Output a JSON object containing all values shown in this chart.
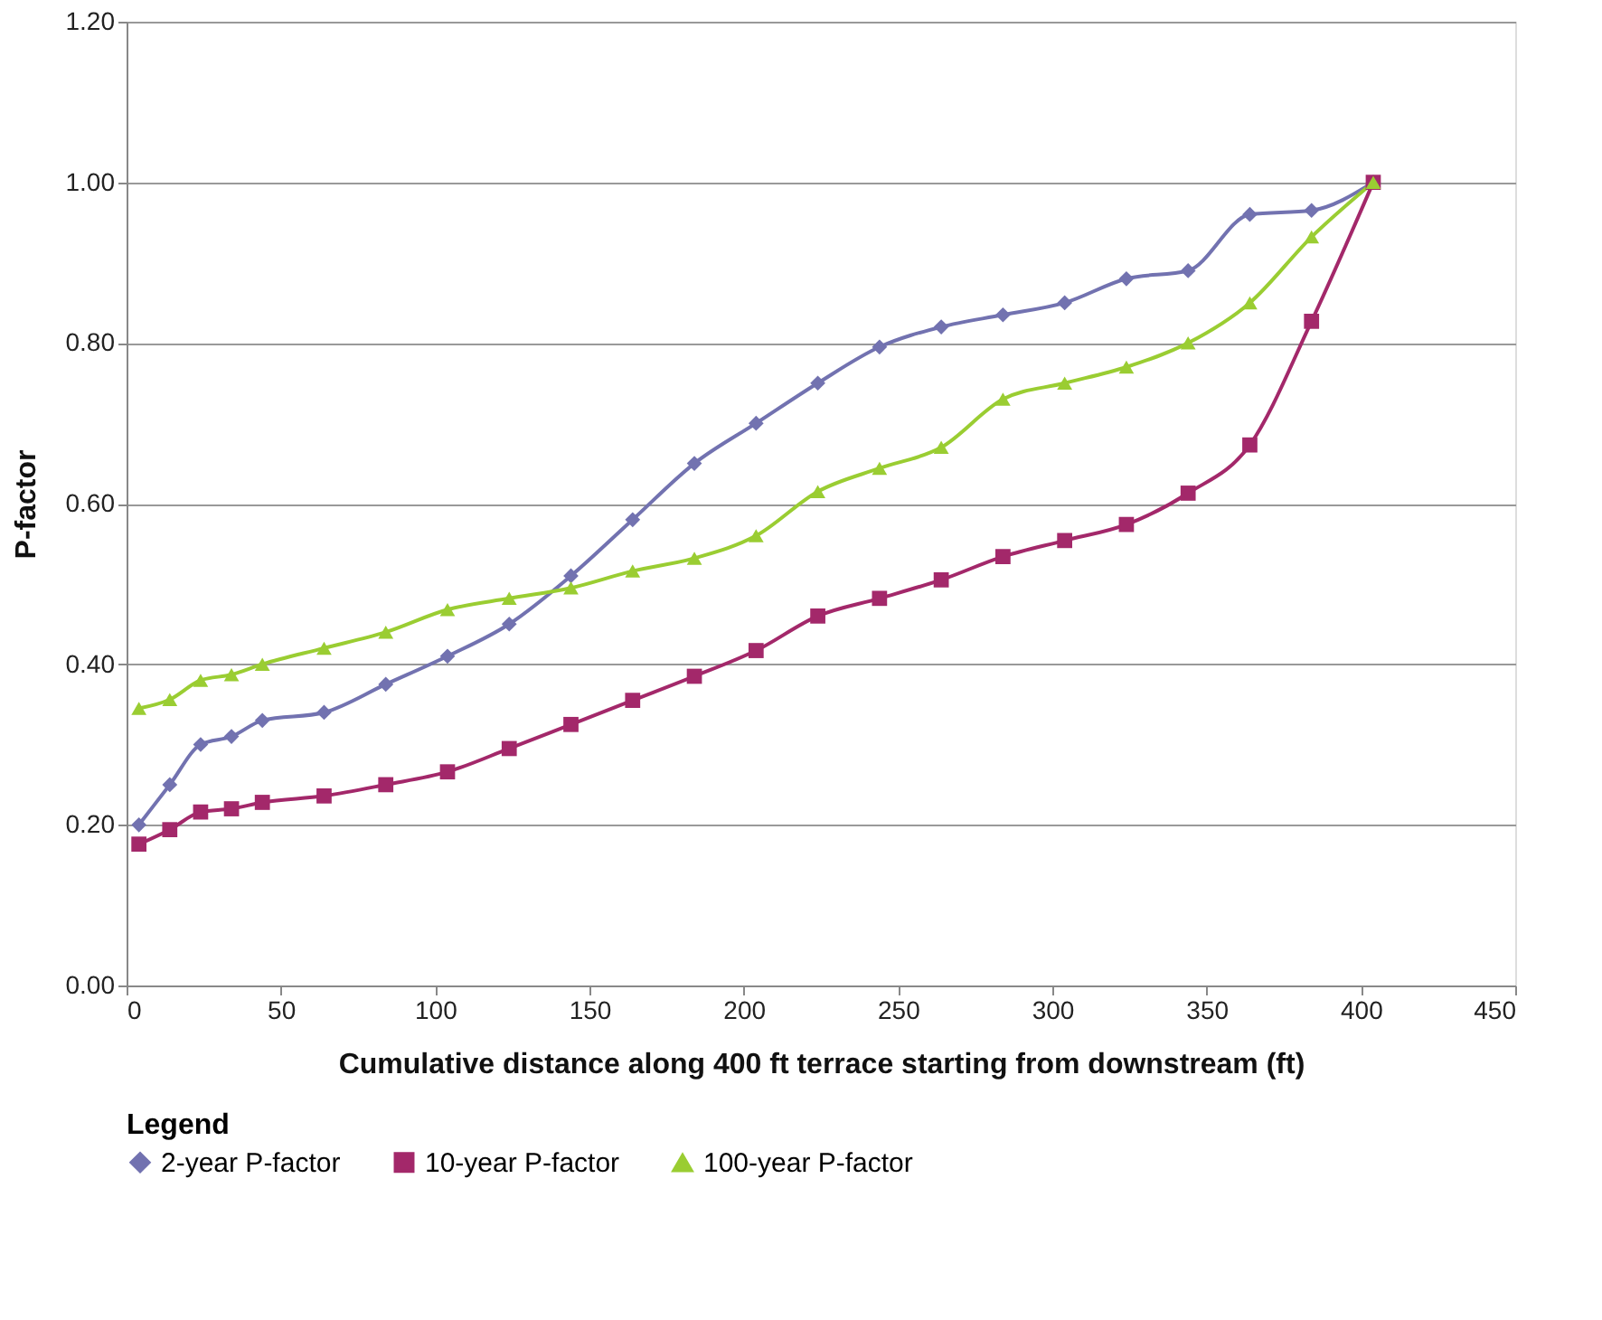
{
  "chart_data": {
    "type": "line",
    "xlabel": "Cumulative distance along 400 ft terrace starting from downstream (ft)",
    "ylabel": "P-factor",
    "legend_title": "Legend",
    "x": [
      4,
      14,
      24,
      34,
      44,
      64,
      84,
      104,
      124,
      144,
      164,
      184,
      204,
      224,
      244,
      264,
      284,
      304,
      324,
      344,
      364,
      384,
      404
    ],
    "series": [
      {
        "name": "2-year P-factor",
        "color": "#7272b0",
        "marker": "diamond",
        "values": [
          0.2,
          0.25,
          0.3,
          0.31,
          0.33,
          0.34,
          0.375,
          0.41,
          0.45,
          0.51,
          0.58,
          0.65,
          0.7,
          0.75,
          0.795,
          0.82,
          0.835,
          0.85,
          0.88,
          0.89,
          0.96,
          0.965,
          1.0
        ]
      },
      {
        "name": "10-year P-factor",
        "color": "#a3286a",
        "marker": "square",
        "values": [
          0.176,
          0.194,
          0.216,
          0.22,
          0.228,
          0.236,
          0.25,
          0.266,
          0.295,
          0.325,
          0.355,
          0.385,
          0.417,
          0.46,
          0.482,
          0.505,
          0.534,
          0.554,
          0.574,
          0.613,
          0.673,
          0.827,
          1.0
        ]
      },
      {
        "name": "100-year P-factor",
        "color": "#9acd32",
        "marker": "triangle",
        "values": [
          0.345,
          0.356,
          0.38,
          0.387,
          0.4,
          0.42,
          0.44,
          0.468,
          0.482,
          0.495,
          0.516,
          0.532,
          0.56,
          0.615,
          0.644,
          0.67,
          0.73,
          0.75,
          0.77,
          0.8,
          0.85,
          0.932,
          1.0
        ]
      }
    ],
    "xlim": [
      0,
      450
    ],
    "xticks": [
      0,
      50,
      100,
      150,
      200,
      250,
      300,
      350,
      400,
      450
    ],
    "ylim": [
      0,
      1.2
    ],
    "yticks": [
      {
        "value": 0,
        "label": "0.00"
      },
      {
        "value": 0.2,
        "label": "0.20"
      },
      {
        "value": 0.4,
        "label": "0.40"
      },
      {
        "value": 0.6,
        "label": "0.60"
      },
      {
        "value": 0.8,
        "label": "0.80"
      },
      {
        "value": 1.0,
        "label": "1.00"
      },
      {
        "value": 1.2,
        "label": "1.20"
      }
    ],
    "grid": "y",
    "legend": "bottom",
    "line_style": "solid"
  }
}
